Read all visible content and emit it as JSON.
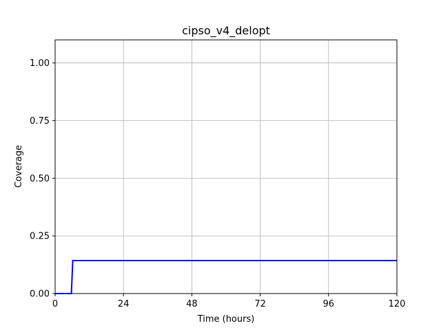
{
  "chart_data": {
    "type": "line",
    "title": "cipso_v4_delopt",
    "xlabel": "Time (hours)",
    "ylabel": "Coverage",
    "xlim": [
      0,
      120
    ],
    "ylim": [
      0,
      1.1
    ],
    "xticks": [
      0,
      24,
      48,
      72,
      96,
      120
    ],
    "xtick_labels": [
      "0",
      "24",
      "48",
      "72",
      "96",
      "120"
    ],
    "yticks": [
      0,
      0.25,
      0.5,
      0.75,
      1.0
    ],
    "ytick_labels": [
      "0.00",
      "0.25",
      "0.50",
      "0.75",
      "1.00"
    ],
    "grid": true,
    "series": [
      {
        "color": "#0000ff",
        "x": [
          0,
          5.7,
          6.2,
          120
        ],
        "y": [
          0,
          0,
          0.143,
          0.143
        ]
      }
    ]
  }
}
